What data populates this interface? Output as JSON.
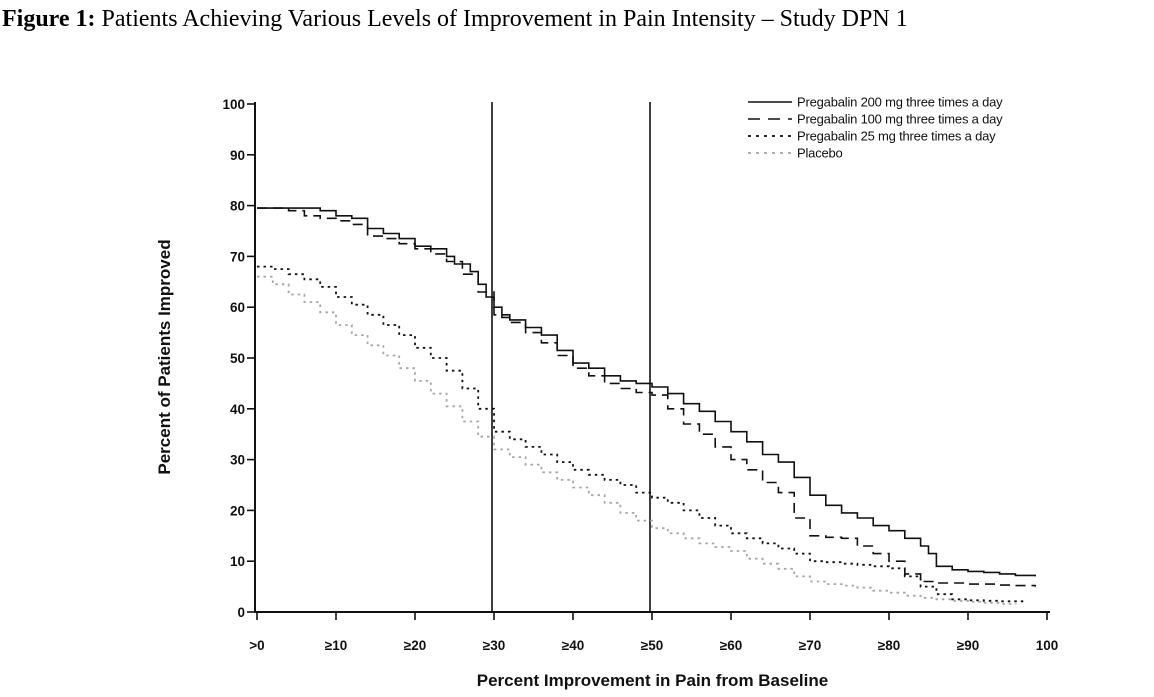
{
  "title": {
    "label": "Figure 1:",
    "text": " Patients Achieving Various Levels of Improvement in Pain Intensity – Study DPN 1"
  },
  "chart_data": {
    "type": "line",
    "title": "",
    "xlabel": "Percent Improvement in Pain from Baseline",
    "ylabel": "Percent of Patients Improved",
    "xlim": [
      0,
      100
    ],
    "ylim": [
      0,
      100
    ],
    "grid": false,
    "legend_position": "top-right",
    "x_tick_values": [
      0,
      10,
      20,
      30,
      40,
      50,
      60,
      70,
      80,
      90,
      100
    ],
    "x_tick_labels": [
      ">0",
      "≥10",
      "≥20",
      "≥30",
      "≥40",
      "≥50",
      "≥60",
      "≥70",
      "≥80",
      "≥90",
      "100"
    ],
    "y_tick_values": [
      0,
      10,
      20,
      30,
      40,
      50,
      60,
      70,
      80,
      90,
      100
    ],
    "y_tick_labels": [
      "0",
      "10",
      "20",
      "30",
      "40",
      "50",
      "60",
      "70",
      "80",
      "90",
      "100"
    ],
    "reference_lines_x": [
      30,
      50
    ],
    "colors": {
      "line_black": "#111111",
      "placebo_gray": "#a6a6a6"
    },
    "series": [
      {
        "name": "Pregabalin 200 mg three times a day",
        "style": "solid",
        "color": "#111111",
        "points": [
          [
            0,
            79.5
          ],
          [
            4,
            79.5
          ],
          [
            7,
            79.5
          ],
          [
            8,
            79
          ],
          [
            10,
            78
          ],
          [
            12,
            77.5
          ],
          [
            14,
            75.5
          ],
          [
            16,
            74.5
          ],
          [
            18,
            73.5
          ],
          [
            20,
            72
          ],
          [
            22,
            71.5
          ],
          [
            24,
            70
          ],
          [
            25,
            68.5
          ],
          [
            27,
            67
          ],
          [
            28,
            64.5
          ],
          [
            29,
            62
          ],
          [
            30,
            60
          ],
          [
            31,
            58
          ],
          [
            32,
            57.5
          ],
          [
            34,
            56
          ],
          [
            36,
            54.5
          ],
          [
            38,
            51.5
          ],
          [
            40,
            49
          ],
          [
            42,
            48
          ],
          [
            44,
            46.5
          ],
          [
            46,
            45.5
          ],
          [
            48,
            45
          ],
          [
            50,
            44.3
          ],
          [
            52,
            43
          ],
          [
            54,
            41
          ],
          [
            56,
            39.5
          ],
          [
            58,
            37.5
          ],
          [
            60,
            35.5
          ],
          [
            62,
            33.5
          ],
          [
            64,
            31
          ],
          [
            66,
            29.5
          ],
          [
            68,
            26.5
          ],
          [
            70,
            23
          ],
          [
            72,
            21
          ],
          [
            74,
            19.5
          ],
          [
            76,
            18.5
          ],
          [
            78,
            17
          ],
          [
            80,
            16
          ],
          [
            82,
            14.5
          ],
          [
            84,
            13
          ],
          [
            85,
            11.5
          ],
          [
            86,
            9
          ],
          [
            88,
            8.3
          ],
          [
            90,
            8
          ],
          [
            92,
            7.8
          ],
          [
            94,
            7.5
          ],
          [
            96,
            7.2
          ],
          [
            98.5,
            7
          ]
        ]
      },
      {
        "name": "Pregabalin 100 mg three times a day",
        "style": "dashed",
        "color": "#111111",
        "points": [
          [
            0,
            79.5
          ],
          [
            4,
            79
          ],
          [
            6,
            78
          ],
          [
            8,
            77.5
          ],
          [
            10,
            77
          ],
          [
            12,
            76.3
          ],
          [
            14,
            74
          ],
          [
            16,
            73.5
          ],
          [
            18,
            72.5
          ],
          [
            20,
            71.5
          ],
          [
            22,
            70.5
          ],
          [
            24,
            69
          ],
          [
            26,
            66.5
          ],
          [
            28,
            63
          ],
          [
            30,
            58.5
          ],
          [
            32,
            57
          ],
          [
            34,
            55
          ],
          [
            36,
            53
          ],
          [
            38,
            50.5
          ],
          [
            40,
            48
          ],
          [
            42,
            46.5
          ],
          [
            44,
            45
          ],
          [
            46,
            44
          ],
          [
            48,
            43.2
          ],
          [
            50,
            42.7
          ],
          [
            52,
            40
          ],
          [
            54,
            37
          ],
          [
            56,
            35
          ],
          [
            58,
            32.5
          ],
          [
            60,
            30
          ],
          [
            62,
            28
          ],
          [
            64,
            25.5
          ],
          [
            66,
            23.5
          ],
          [
            68,
            18.5
          ],
          [
            70,
            15
          ],
          [
            72,
            14.7
          ],
          [
            74,
            14.5
          ],
          [
            76,
            13
          ],
          [
            78,
            11.5
          ],
          [
            80,
            10
          ],
          [
            82,
            7.5
          ],
          [
            84,
            6
          ],
          [
            86,
            5.7
          ],
          [
            88,
            5.7
          ],
          [
            90,
            5.5
          ],
          [
            92,
            5.5
          ],
          [
            94,
            5.3
          ],
          [
            96,
            5.2
          ],
          [
            98.5,
            5
          ]
        ]
      },
      {
        "name": "Pregabalin 25 mg three times a day",
        "style": "dotted",
        "color": "#111111",
        "points": [
          [
            0,
            68
          ],
          [
            2,
            67.5
          ],
          [
            4,
            66.5
          ],
          [
            6,
            65.5
          ],
          [
            8,
            64
          ],
          [
            10,
            62
          ],
          [
            12,
            60.5
          ],
          [
            14,
            58.5
          ],
          [
            16,
            56.5
          ],
          [
            18,
            54.5
          ],
          [
            20,
            52
          ],
          [
            22,
            50
          ],
          [
            24,
            47.5
          ],
          [
            26,
            44
          ],
          [
            28,
            40
          ],
          [
            30,
            35.5
          ],
          [
            32,
            34
          ],
          [
            34,
            32.5
          ],
          [
            36,
            31
          ],
          [
            38,
            29.5
          ],
          [
            40,
            28
          ],
          [
            42,
            27
          ],
          [
            44,
            26
          ],
          [
            46,
            25
          ],
          [
            48,
            23.5
          ],
          [
            50,
            22.5
          ],
          [
            52,
            21.5
          ],
          [
            54,
            20
          ],
          [
            56,
            18.5
          ],
          [
            58,
            17
          ],
          [
            60,
            15.5
          ],
          [
            62,
            14.5
          ],
          [
            64,
            13.5
          ],
          [
            66,
            12.5
          ],
          [
            68,
            11.5
          ],
          [
            70,
            10
          ],
          [
            72,
            9.8
          ],
          [
            74,
            9.5
          ],
          [
            76,
            9.3
          ],
          [
            78,
            9
          ],
          [
            80,
            8.6
          ],
          [
            82,
            7
          ],
          [
            84,
            5
          ],
          [
            86,
            3.5
          ],
          [
            88,
            2.5
          ],
          [
            90,
            2.3
          ],
          [
            92,
            2.2
          ],
          [
            94,
            2.1
          ],
          [
            97,
            2
          ]
        ]
      },
      {
        "name": "Placebo",
        "style": "dotted",
        "color": "#a6a6a6",
        "points": [
          [
            0,
            66
          ],
          [
            2,
            64.5
          ],
          [
            4,
            62.5
          ],
          [
            6,
            61
          ],
          [
            8,
            59
          ],
          [
            10,
            56.5
          ],
          [
            12,
            54.5
          ],
          [
            14,
            52.5
          ],
          [
            16,
            50.5
          ],
          [
            18,
            48
          ],
          [
            20,
            45.5
          ],
          [
            22,
            43
          ],
          [
            24,
            40.5
          ],
          [
            26,
            37.5
          ],
          [
            28,
            34.5
          ],
          [
            30,
            32
          ],
          [
            32,
            30.5
          ],
          [
            34,
            29
          ],
          [
            36,
            27.5
          ],
          [
            38,
            26
          ],
          [
            40,
            24.5
          ],
          [
            42,
            23
          ],
          [
            44,
            21.5
          ],
          [
            46,
            19.5
          ],
          [
            48,
            18
          ],
          [
            50,
            16.5
          ],
          [
            52,
            15.5
          ],
          [
            54,
            14.5
          ],
          [
            56,
            13.5
          ],
          [
            58,
            12.8
          ],
          [
            60,
            12
          ],
          [
            62,
            10.5
          ],
          [
            64,
            9.5
          ],
          [
            66,
            8.5
          ],
          [
            68,
            7
          ],
          [
            70,
            6
          ],
          [
            72,
            5.5
          ],
          [
            74,
            5.2
          ],
          [
            76,
            4.8
          ],
          [
            78,
            4.2
          ],
          [
            80,
            3.8
          ],
          [
            82,
            3.2
          ],
          [
            84,
            2.8
          ],
          [
            86,
            2.5
          ],
          [
            88,
            2.2
          ],
          [
            90,
            2
          ],
          [
            92,
            1.8
          ],
          [
            94,
            1.6
          ],
          [
            96,
            1.5
          ]
        ]
      }
    ]
  }
}
